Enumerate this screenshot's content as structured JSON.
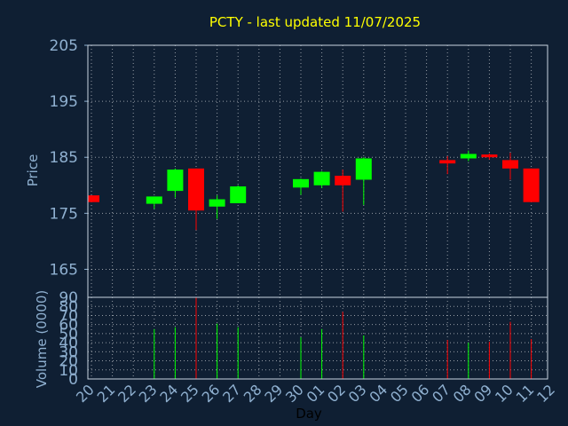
{
  "chart_data": {
    "type": "candlestick",
    "title": "PCTY - last updated 11/07/2025",
    "xlabel": "Day",
    "ylabel": "Price",
    "volume_label": "Volume (0000)",
    "x_ticks": [
      "20",
      "21",
      "22",
      "23",
      "24",
      "25",
      "26",
      "27",
      "28",
      "29",
      "30",
      "01",
      "02",
      "03",
      "04",
      "05",
      "06",
      "07",
      "08",
      "09",
      "10",
      "11",
      "12"
    ],
    "price_ticks": [
      165,
      175,
      185,
      195,
      205
    ],
    "price_range": [
      160,
      205
    ],
    "volume_ticks": [
      0,
      10,
      20,
      30,
      40,
      50,
      60,
      70,
      80,
      90
    ],
    "volume_range": [
      0,
      90
    ],
    "grid": true,
    "colors": {
      "background": "#0f1f33",
      "text": "#8fb0d0",
      "title": "#ffff00",
      "grid": "#ffffff",
      "up": "#00ff00",
      "down": "#ff0000"
    },
    "candles": [
      {
        "day": "20",
        "open": 178.2,
        "high": 178.2,
        "low": 177.0,
        "close": 177.0,
        "volume": 0
      },
      {
        "day": "23",
        "open": 176.7,
        "high": 178.0,
        "low": 175.8,
        "close": 178.0,
        "volume": 55
      },
      {
        "day": "24",
        "open": 179.0,
        "high": 183.0,
        "low": 177.8,
        "close": 182.8,
        "volume": 57
      },
      {
        "day": "25",
        "open": 183.0,
        "high": 183.0,
        "low": 172.0,
        "close": 175.5,
        "volume": 91
      },
      {
        "day": "26",
        "open": 176.2,
        "high": 178.2,
        "low": 174.0,
        "close": 177.5,
        "volume": 61
      },
      {
        "day": "27",
        "open": 176.8,
        "high": 180.0,
        "low": 176.8,
        "close": 179.8,
        "volume": 57
      },
      {
        "day": "30",
        "open": 179.6,
        "high": 181.2,
        "low": 178.3,
        "close": 181.1,
        "volume": 46
      },
      {
        "day": "01",
        "open": 180.0,
        "high": 182.5,
        "low": 179.5,
        "close": 182.4,
        "volume": 55
      },
      {
        "day": "02",
        "open": 181.7,
        "high": 182.8,
        "low": 175.3,
        "close": 180.0,
        "volume": 74
      },
      {
        "day": "03",
        "open": 181.0,
        "high": 185.0,
        "low": 176.5,
        "close": 184.8,
        "volume": 48
      },
      {
        "day": "07",
        "open": 184.5,
        "high": 185.2,
        "low": 182.0,
        "close": 183.9,
        "volume": 43
      },
      {
        "day": "08",
        "open": 184.8,
        "high": 186.2,
        "low": 184.3,
        "close": 185.6,
        "volume": 40
      },
      {
        "day": "09",
        "open": 185.5,
        "high": 185.7,
        "low": 184.6,
        "close": 185.0,
        "volume": 41
      },
      {
        "day": "10",
        "open": 184.5,
        "high": 185.8,
        "low": 181.0,
        "close": 183.0,
        "volume": 63
      },
      {
        "day": "11",
        "open": 183.0,
        "high": 183.0,
        "low": 177.0,
        "close": 177.0,
        "volume": 44
      }
    ]
  }
}
